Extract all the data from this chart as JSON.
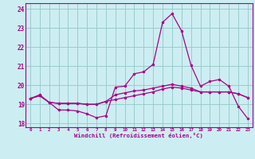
{
  "xlabel": "Windchill (Refroidissement éolien,°C)",
  "xlim": [
    -0.5,
    23.5
  ],
  "ylim": [
    17.8,
    24.3
  ],
  "yticks": [
    18,
    19,
    20,
    21,
    22,
    23,
    24
  ],
  "xticks": [
    0,
    1,
    2,
    3,
    4,
    5,
    6,
    7,
    8,
    9,
    10,
    11,
    12,
    13,
    14,
    15,
    16,
    17,
    18,
    19,
    20,
    21,
    22,
    23
  ],
  "background_color": "#cceef2",
  "line_color": "#aa0088",
  "grid_color": "#99cccc",
  "series": [
    [
      19.3,
      19.5,
      19.1,
      18.7,
      18.7,
      18.65,
      18.5,
      18.3,
      18.4,
      19.9,
      19.95,
      20.6,
      20.7,
      21.1,
      23.3,
      23.75,
      22.85,
      21.05,
      19.95,
      20.2,
      20.3,
      19.95,
      18.9,
      18.25
    ],
    [
      19.3,
      19.45,
      19.1,
      19.05,
      19.05,
      19.05,
      19.0,
      19.0,
      19.15,
      19.25,
      19.35,
      19.45,
      19.55,
      19.65,
      19.8,
      19.9,
      19.85,
      19.75,
      19.65,
      19.65,
      19.65,
      19.65,
      19.55,
      19.35
    ],
    [
      19.3,
      19.45,
      19.1,
      19.05,
      19.05,
      19.05,
      19.0,
      19.0,
      19.15,
      19.5,
      19.6,
      19.7,
      19.75,
      19.85,
      19.95,
      20.05,
      19.95,
      19.85,
      19.65,
      19.65,
      19.65,
      19.65,
      19.55,
      19.35
    ]
  ]
}
